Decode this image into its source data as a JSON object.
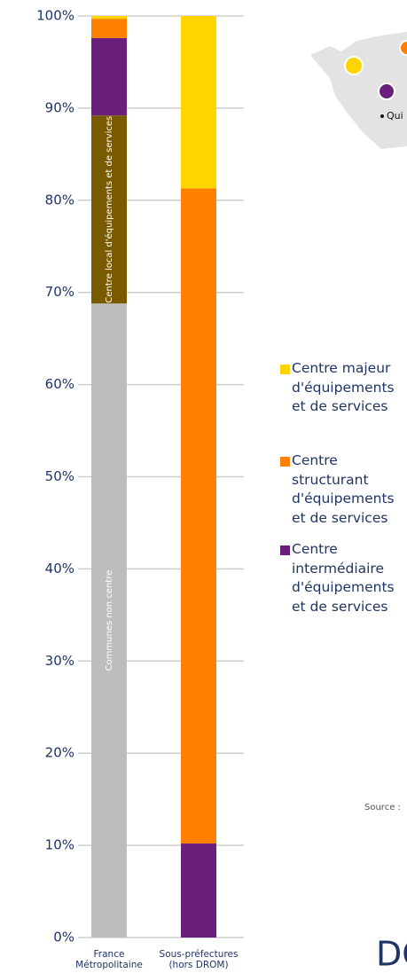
{
  "chart_data": {
    "type": "stacked_bar",
    "categories": [
      "France Métropolitaine",
      "Sous-préfectures (hors DROM)"
    ],
    "series": [
      {
        "name": "Communes non centre",
        "color": "#bdbdbd",
        "values": [
          68.8,
          0
        ]
      },
      {
        "name": "Centre local d'équipements et de services",
        "color": "#7a5a00",
        "values": [
          20.4,
          0
        ]
      },
      {
        "name": "Centre intermédiaire d'équipements et de services",
        "color": "#6b1f7c",
        "values": [
          8.4,
          10.2
        ]
      },
      {
        "name": "Centre structurant d'équipements et de services",
        "color": "#ff7f00",
        "values": [
          2.1,
          71.1
        ]
      },
      {
        "name": "Centre majeur d'équipements et de services",
        "color": "#ffd500",
        "values": [
          0.3,
          18.7
        ]
      }
    ],
    "ylim": [
      0,
      100
    ],
    "yticks": [
      {
        "value": 0,
        "label": "0%"
      },
      {
        "value": 10,
        "label": "10%"
      },
      {
        "value": 20,
        "label": "20%"
      },
      {
        "value": 30,
        "label": "30%"
      },
      {
        "value": 40,
        "label": "40%"
      },
      {
        "value": 50,
        "label": "50%"
      },
      {
        "value": 60,
        "label": "60%"
      },
      {
        "value": 70,
        "label": "70%"
      },
      {
        "value": 80,
        "label": "80%"
      },
      {
        "value": 90,
        "label": "90%"
      },
      {
        "value": 100,
        "label": "100%"
      }
    ],
    "grid": true,
    "map_label": "Qui",
    "source": "Source :",
    "footer": "DO"
  }
}
